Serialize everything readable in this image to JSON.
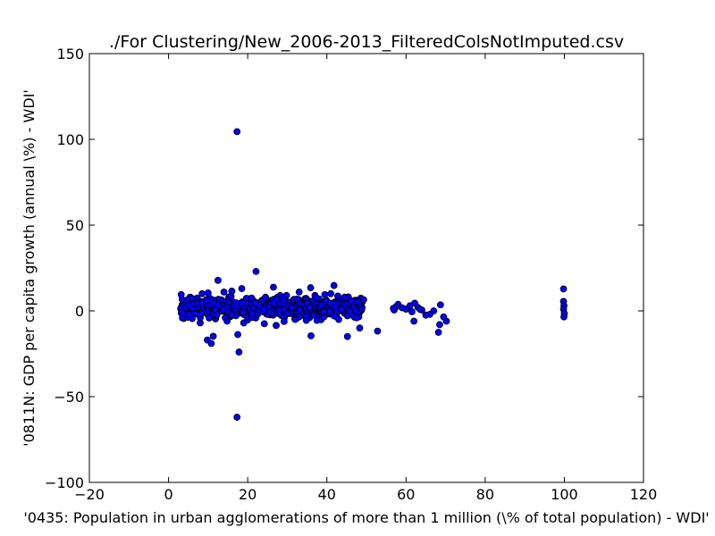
{
  "chart_data": {
    "type": "scatter",
    "title": "./For Clustering/New_2006-2013_FilteredColsNotImputed.csv",
    "xlabel": "'0435: Population in urban agglomerations of more than 1 million  (\\% of total population) - WDI'",
    "ylabel": "'0811N: GDP per capita growth  (annual \\%) - WDI'",
    "xlim": [
      -20,
      120
    ],
    "ylim": [
      -100,
      150
    ],
    "xticks": [
      -20,
      0,
      20,
      40,
      60,
      80,
      100,
      120
    ],
    "yticks": [
      -100,
      -50,
      0,
      50,
      100,
      150
    ],
    "xtick_labels": [
      "−20",
      "0",
      "20",
      "40",
      "60",
      "80",
      "100",
      "120"
    ],
    "ytick_labels": [
      "−100",
      "−50",
      "0",
      "50",
      "100",
      "150"
    ],
    "grid": false,
    "marker_color": "#0000ff",
    "marker_edge": "#000000",
    "points": [
      {
        "x": 17.3,
        "y": 104.5
      },
      {
        "x": 17.3,
        "y": -62.0
      },
      {
        "x": 17.8,
        "y": -24.0
      },
      {
        "x": 17.5,
        "y": -13.8
      },
      {
        "x": 22.1,
        "y": 23.0
      },
      {
        "x": 12.5,
        "y": 17.8
      },
      {
        "x": 9.8,
        "y": -17.0
      },
      {
        "x": 10.8,
        "y": -19.0
      },
      {
        "x": 11.3,
        "y": -14.8
      },
      {
        "x": 36.0,
        "y": -14.5
      },
      {
        "x": 45.2,
        "y": -15.0
      },
      {
        "x": 48.3,
        "y": -10.0
      },
      {
        "x": 52.8,
        "y": -11.8
      },
      {
        "x": 41.8,
        "y": 14.8
      },
      {
        "x": 35.9,
        "y": 13.5
      },
      {
        "x": 26.5,
        "y": 13.8
      },
      {
        "x": 18.5,
        "y": 13.0
      },
      {
        "x": 99.8,
        "y": 12.8
      },
      {
        "x": 99.8,
        "y": 5.5
      },
      {
        "x": 99.9,
        "y": 3.0
      },
      {
        "x": 99.8,
        "y": 1.0
      },
      {
        "x": 100.0,
        "y": -1.5
      },
      {
        "x": 99.9,
        "y": -3.5
      },
      {
        "x": 62.0,
        "y": -6.0
      },
      {
        "x": 68.2,
        "y": -12.5
      },
      {
        "x": 68.5,
        "y": -8.0
      },
      {
        "x": 70.2,
        "y": -6.0
      },
      {
        "x": 69.5,
        "y": -3.5
      },
      {
        "x": 68.7,
        "y": 3.5
      },
      {
        "x": 66.0,
        "y": -2.0
      },
      {
        "x": 65.0,
        "y": -2.5
      },
      {
        "x": 64.0,
        "y": 0.5
      },
      {
        "x": 63.0,
        "y": 2.0
      },
      {
        "x": 62.2,
        "y": 4.5
      },
      {
        "x": 61.0,
        "y": 3.0
      },
      {
        "x": 60.0,
        "y": 1.0
      },
      {
        "x": 59.0,
        "y": 1.8
      },
      {
        "x": 58.0,
        "y": 3.8
      },
      {
        "x": 57.5,
        "y": 2.5
      },
      {
        "x": 57.0,
        "y": 0.5
      },
      {
        "x": 56.8,
        "y": 1.5
      },
      {
        "x": 67.0,
        "y": 0.0
      },
      {
        "x": 61.5,
        "y": -0.5
      },
      {
        "x": 63.5,
        "y": 1.0
      },
      {
        "x": 29.2,
        "y": -6.2
      },
      {
        "x": 32.0,
        "y": -5.0
      },
      {
        "x": 27.2,
        "y": -8.5
      },
      {
        "x": 24.2,
        "y": -7.5
      },
      {
        "x": 19.0,
        "y": -7.0
      },
      {
        "x": 14.8,
        "y": -6.0
      },
      {
        "x": 8.0,
        "y": -7.0
      },
      {
        "x": 6.0,
        "y": -4.5
      },
      {
        "x": 3.5,
        "y": -1.0
      },
      {
        "x": 37.5,
        "y": -5.5
      },
      {
        "x": 34.8,
        "y": -5.5
      },
      {
        "x": 43.0,
        "y": -5.0
      },
      {
        "x": 47.5,
        "y": -4.0
      },
      {
        "x": 49.3,
        "y": 6.5
      },
      {
        "x": 46.0,
        "y": 6.0
      },
      {
        "x": 44.5,
        "y": 8.0
      },
      {
        "x": 41.0,
        "y": 10.0
      },
      {
        "x": 39.5,
        "y": 9.5
      },
      {
        "x": 33.0,
        "y": 11.0
      },
      {
        "x": 29.8,
        "y": 9.0
      },
      {
        "x": 16.0,
        "y": 11.5
      },
      {
        "x": 10.0,
        "y": 10.5
      },
      {
        "x": 8.5,
        "y": 10.0
      },
      {
        "x": 3.2,
        "y": 9.5
      },
      {
        "x": 14.0,
        "y": 11.0
      },
      {
        "x": 21.0,
        "y": 7.5
      },
      {
        "x": 24.5,
        "y": 8.0
      }
    ],
    "dense_clusters": [
      {
        "x_range": [
          3,
          49
        ],
        "y_center": 2.0,
        "y_spread": 5.5,
        "count": 620
      }
    ]
  }
}
